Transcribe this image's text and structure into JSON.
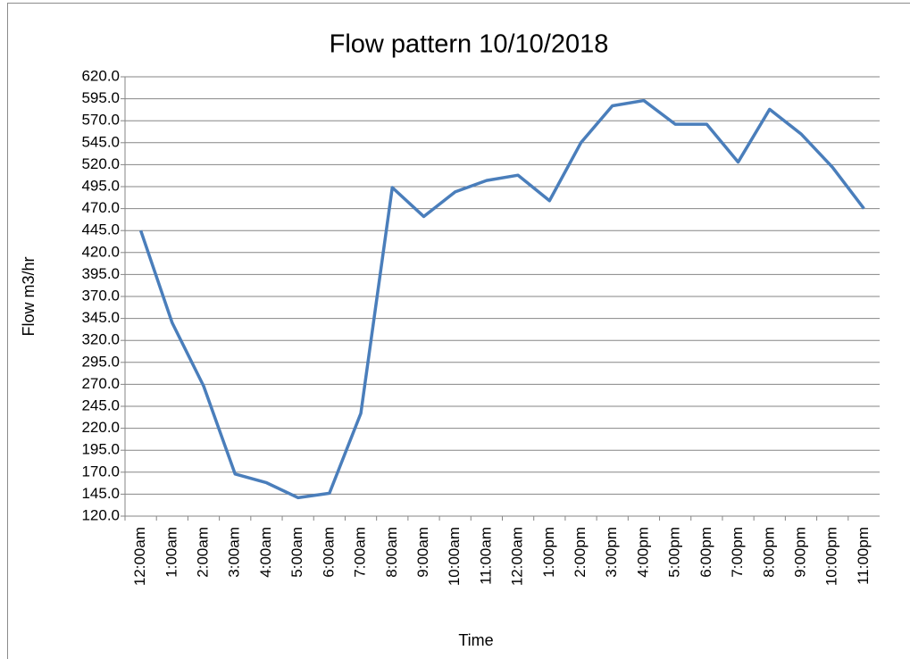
{
  "chart_data": {
    "type": "line",
    "title": "Flow pattern 10/10/2018",
    "x_label": "Time",
    "y_label": "Flow m3/hr",
    "categories": [
      "12:00am",
      "1:00am",
      "2:00am",
      "3:00am",
      "4:00am",
      "5:00am",
      "6:00am",
      "7:00am",
      "8:00am",
      "9:00am",
      "10:00am",
      "11:00am",
      "12:00am",
      "1:00pm",
      "2:00pm",
      "3:00pm",
      "4:00pm",
      "5:00pm",
      "6:00pm",
      "7:00pm",
      "8:00pm",
      "9:00pm",
      "10:00pm",
      "11:00pm"
    ],
    "series": [
      {
        "color": "#4a7ebb",
        "values": [
          445,
          340,
          268,
          168,
          158,
          141,
          146,
          237,
          494,
          461,
          489,
          502,
          508,
          479,
          545,
          587,
          593,
          566,
          566,
          523,
          583,
          555,
          517,
          470
        ]
      }
    ],
    "ylim": [
      120,
      620
    ],
    "yticks": [
      {
        "value": 120,
        "label": "120.0"
      },
      {
        "value": 145,
        "label": "145.0"
      },
      {
        "value": 170,
        "label": "170.0"
      },
      {
        "value": 195,
        "label": "195.0"
      },
      {
        "value": 220,
        "label": "220.0"
      },
      {
        "value": 245,
        "label": "245.0"
      },
      {
        "value": 270,
        "label": "270.0"
      },
      {
        "value": 295,
        "label": "295.0"
      },
      {
        "value": 320,
        "label": "320.0"
      },
      {
        "value": 345,
        "label": "345.0"
      },
      {
        "value": 370,
        "label": "370.0"
      },
      {
        "value": 395,
        "label": "395.0"
      },
      {
        "value": 420,
        "label": "420.0"
      },
      {
        "value": 445,
        "label": "445.0"
      },
      {
        "value": 470,
        "label": "470.0"
      },
      {
        "value": 495,
        "label": "495.0"
      },
      {
        "value": 520,
        "label": "520.0"
      },
      {
        "value": 545,
        "label": "545.0"
      },
      {
        "value": 570,
        "label": "570.0"
      },
      {
        "value": 595,
        "label": "595.0"
      },
      {
        "value": 620,
        "label": "620.0"
      }
    ],
    "grid": true
  }
}
